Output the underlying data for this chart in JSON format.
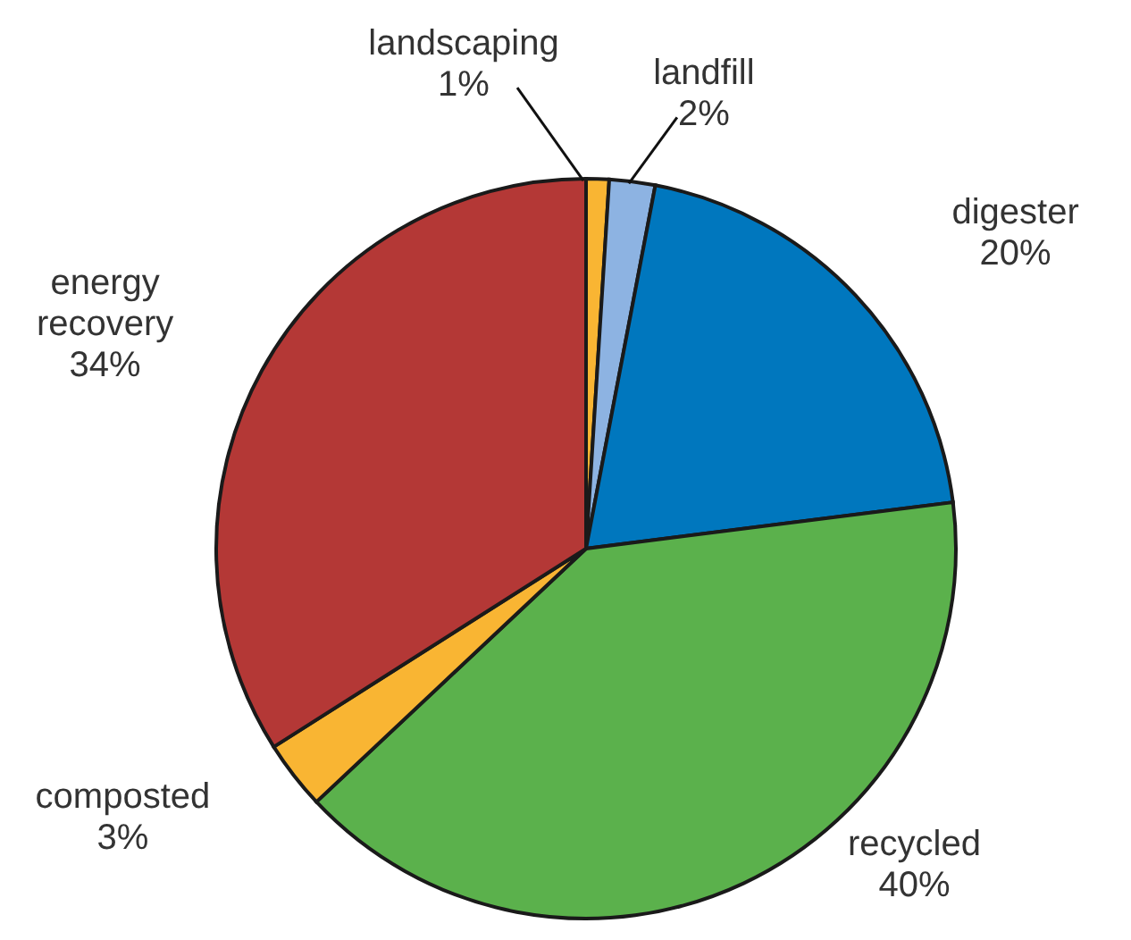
{
  "chart_data": {
    "type": "pie",
    "categories": [
      "landscaping",
      "landfill",
      "digester",
      "recycled",
      "composted",
      "energy recovery"
    ],
    "values": [
      1,
      2,
      20,
      40,
      3,
      34
    ],
    "colors": [
      "#f9b533",
      "#8db3e2",
      "#0077be",
      "#5bb14c",
      "#f9b533",
      "#b43836"
    ],
    "value_labels": [
      "1%",
      "2%",
      "20%",
      "40%",
      "3%",
      "34%"
    ]
  }
}
